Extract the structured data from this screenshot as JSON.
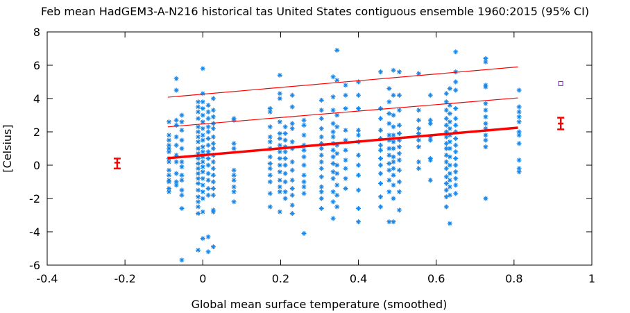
{
  "chart_data": {
    "type": "scatter",
    "title": "Feb mean HadGEM3-A-N216 historical tas United States contiguous ensemble 1960:2015 (95% CI)",
    "xlabel": "Global mean surface temperature (smoothed)",
    "ylabel": "[Celsius]",
    "xlim": [
      -0.4,
      1
    ],
    "ylim": [
      -6,
      8
    ],
    "xticks": [
      "-0.4",
      "-0.2",
      "0",
      "0.2",
      "0.4",
      "0.6",
      "0.8",
      "1"
    ],
    "yticks": [
      "-6",
      "-4",
      "-2",
      "0",
      "2",
      "4",
      "6",
      "8"
    ],
    "grid": false,
    "colors": {
      "points": "#1a86e8",
      "fit": "#ff0000",
      "observation": "#9400d3"
    },
    "scatter_columns": [
      {
        "x": -0.087,
        "y": [
          2.6,
          1.8,
          1.5,
          1.2,
          1.0,
          0.8,
          0.4,
          0.2,
          -0.3,
          -0.6,
          -1.0,
          -1.4,
          -1.6,
          -0.9
        ]
      },
      {
        "x": -0.068,
        "y": [
          5.2,
          4.5,
          2.7,
          2.4,
          1.7,
          1.2,
          0.6,
          0.2,
          -0.5,
          -1.0,
          -1.2
        ]
      },
      {
        "x": -0.054,
        "y": [
          3.0,
          2.6,
          2.1,
          1.5,
          1.0,
          0.2,
          -0.1,
          -0.6,
          -0.9,
          -1.5,
          -1.8,
          -2.6,
          -5.7
        ]
      },
      {
        "x": -0.012,
        "y": [
          3.8,
          3.5,
          3.2,
          2.8,
          2.3,
          2.0,
          1.7,
          1.4,
          1.0,
          0.7,
          0.4,
          0.1,
          -0.2,
          -0.5,
          -0.8,
          -1.1,
          -1.5,
          -1.9,
          -2.2,
          -2.5,
          -2.9,
          -5.1
        ]
      },
      {
        "x": 0.0,
        "y": [
          5.8,
          4.3,
          3.8,
          3.4,
          3.0,
          2.6,
          2.2,
          1.8,
          1.5,
          1.1,
          0.8,
          0.5,
          0.2,
          -0.1,
          -0.4,
          -0.8,
          -1.2,
          -1.6,
          -2.0,
          -2.8,
          -4.4
        ]
      },
      {
        "x": 0.014,
        "y": [
          3.6,
          3.2,
          2.8,
          2.3,
          2.0,
          1.6,
          1.2,
          0.8,
          0.4,
          0.0,
          -0.5,
          -0.9,
          -1.4,
          -1.8,
          -4.3,
          -5.2
        ]
      },
      {
        "x": 0.027,
        "y": [
          4.0,
          3.3,
          2.9,
          2.5,
          2.2,
          1.7,
          1.3,
          1.0,
          0.6,
          0.2,
          -0.2,
          -0.6,
          -1.0,
          -1.4,
          -1.8,
          -2.7,
          -2.8,
          -4.9
        ]
      },
      {
        "x": 0.08,
        "y": [
          2.8,
          2.7,
          1.3,
          1.0,
          -0.3,
          -0.6,
          -0.9,
          -1.3,
          -1.6,
          -2.2
        ]
      },
      {
        "x": 0.173,
        "y": [
          3.4,
          3.2,
          2.3,
          1.7,
          1.4,
          1.0,
          0.5,
          0.1,
          -0.2,
          -0.6,
          -1.0,
          -1.7,
          -2.5
        ]
      },
      {
        "x": 0.198,
        "y": [
          5.4,
          4.3,
          4.0,
          2.6,
          1.9,
          1.6,
          1.2,
          0.8,
          0.4,
          0.0,
          -0.4,
          -0.9,
          -1.3,
          -1.6,
          -2.8
        ]
      },
      {
        "x": 0.212,
        "y": [
          2.3,
          1.9,
          1.5,
          1.1,
          0.8,
          0.4,
          0.0,
          -0.5,
          -1.0,
          -1.6,
          -2.0
        ]
      },
      {
        "x": 0.23,
        "y": [
          4.2,
          3.5,
          2.5,
          2.2,
          1.4,
          1.0,
          0.2,
          -0.3,
          -0.9,
          -1.4,
          -1.8,
          -2.4,
          -2.9
        ]
      },
      {
        "x": 0.26,
        "y": [
          2.7,
          2.4,
          1.8,
          1.2,
          0.9,
          0.5,
          0.0,
          -0.6,
          -1.0,
          -1.3,
          -1.7,
          -4.1
        ]
      },
      {
        "x": 0.305,
        "y": [
          3.9,
          3.3,
          2.8,
          2.2,
          1.7,
          1.3,
          1.0,
          0.6,
          0.2,
          -0.2,
          -0.7,
          -1.3,
          -1.6,
          -2.0,
          -2.6
        ]
      },
      {
        "x": 0.335,
        "y": [
          5.3,
          4.1,
          3.3,
          2.5,
          2.0,
          1.7,
          1.3,
          0.9,
          0.5,
          0.1,
          -0.4,
          -0.8,
          -1.6,
          -2.2,
          -3.2
        ]
      },
      {
        "x": 0.345,
        "y": [
          6.9,
          5.1,
          3.0,
          2.3,
          1.2,
          0.7,
          0.0,
          -0.5,
          -1.2,
          -1.8,
          -2.5
        ]
      },
      {
        "x": 0.367,
        "y": [
          4.8,
          4.2,
          3.4,
          2.1,
          1.5,
          0.9,
          0.3,
          -0.2,
          -0.8,
          -1.4
        ]
      },
      {
        "x": 0.4,
        "y": [
          5.0,
          4.2,
          3.4,
          2.1,
          1.8,
          1.4,
          0.6,
          0.0,
          -0.6,
          -1.5,
          -2.6,
          -3.4
        ]
      },
      {
        "x": 0.457,
        "y": [
          5.6,
          3.4,
          2.8,
          2.1,
          1.6,
          1.2,
          0.9,
          0.4,
          0.0,
          -0.5,
          -1.1,
          -1.9,
          -2.5
        ]
      },
      {
        "x": 0.479,
        "y": [
          4.6,
          3.8,
          3.1,
          2.5,
          1.8,
          1.5,
          1.0,
          0.6,
          0.1,
          -0.3,
          -0.9,
          -1.6,
          -3.4
        ]
      },
      {
        "x": 0.49,
        "y": [
          5.7,
          4.2,
          3.0,
          2.3,
          1.8,
          1.4,
          1.0,
          0.5,
          0.2,
          -0.2,
          -0.6,
          -1.2,
          -2.0,
          -3.4
        ]
      },
      {
        "x": 0.505,
        "y": [
          5.6,
          4.2,
          3.3,
          2.4,
          1.9,
          1.5,
          1.1,
          0.7,
          0.3,
          -0.3,
          -1.0,
          -1.6,
          -2.7
        ]
      },
      {
        "x": 0.555,
        "y": [
          5.5,
          3.3,
          2.7,
          2.2,
          1.9,
          1.5,
          1.1,
          0.2,
          -0.2
        ]
      },
      {
        "x": 0.585,
        "y": [
          4.2,
          2.7,
          2.5,
          1.7,
          1.5,
          0.4,
          0.3,
          -0.9
        ]
      },
      {
        "x": 0.626,
        "y": [
          4.3,
          3.8,
          3.3,
          2.8,
          2.4,
          2.0,
          1.7,
          1.3,
          1.0,
          0.6,
          0.2,
          -0.2,
          -0.7,
          -1.1,
          -1.5,
          -1.9,
          -2.5
        ]
      },
      {
        "x": 0.635,
        "y": [
          4.6,
          3.6,
          3.1,
          2.6,
          2.2,
          1.8,
          1.4,
          1.0,
          0.5,
          0.0,
          -0.5,
          -0.9,
          -1.3,
          -1.8,
          -3.5
        ]
      },
      {
        "x": 0.65,
        "y": [
          6.8,
          5.6,
          5.0,
          4.5,
          3.4,
          2.8,
          2.4,
          2.0,
          1.6,
          1.2,
          0.8,
          0.4,
          0.0,
          -0.4,
          -0.8,
          -1.2,
          -1.7
        ]
      },
      {
        "x": 0.727,
        "y": [
          6.4,
          6.2,
          4.8,
          4.7,
          3.7,
          3.3,
          2.9,
          2.5,
          2.2,
          1.8,
          1.5,
          1.1,
          -2.0
        ]
      },
      {
        "x": 0.813,
        "y": [
          4.5,
          3.5,
          3.2,
          2.9,
          2.6,
          2.0,
          1.8,
          1.3,
          0.3,
          -0.2,
          -0.4
        ]
      }
    ],
    "fit_lines": [
      {
        "x": [
          -0.09,
          0.81
        ],
        "y": [
          0.42,
          2.25
        ],
        "style": "thick"
      },
      {
        "x": [
          -0.09,
          0.81
        ],
        "y": [
          2.3,
          4.04
        ],
        "style": "thin"
      },
      {
        "x": [
          -0.09,
          0.81
        ],
        "y": [
          4.08,
          5.9
        ],
        "style": "thin"
      }
    ],
    "error_bars": [
      {
        "x": -0.22,
        "y": 0.15,
        "low": -0.2,
        "high": 0.4
      },
      {
        "x": 0.92,
        "y": 2.5,
        "low": 2.15,
        "high": 2.85
      }
    ],
    "observation": {
      "x": 0.92,
      "y": 4.9
    }
  }
}
